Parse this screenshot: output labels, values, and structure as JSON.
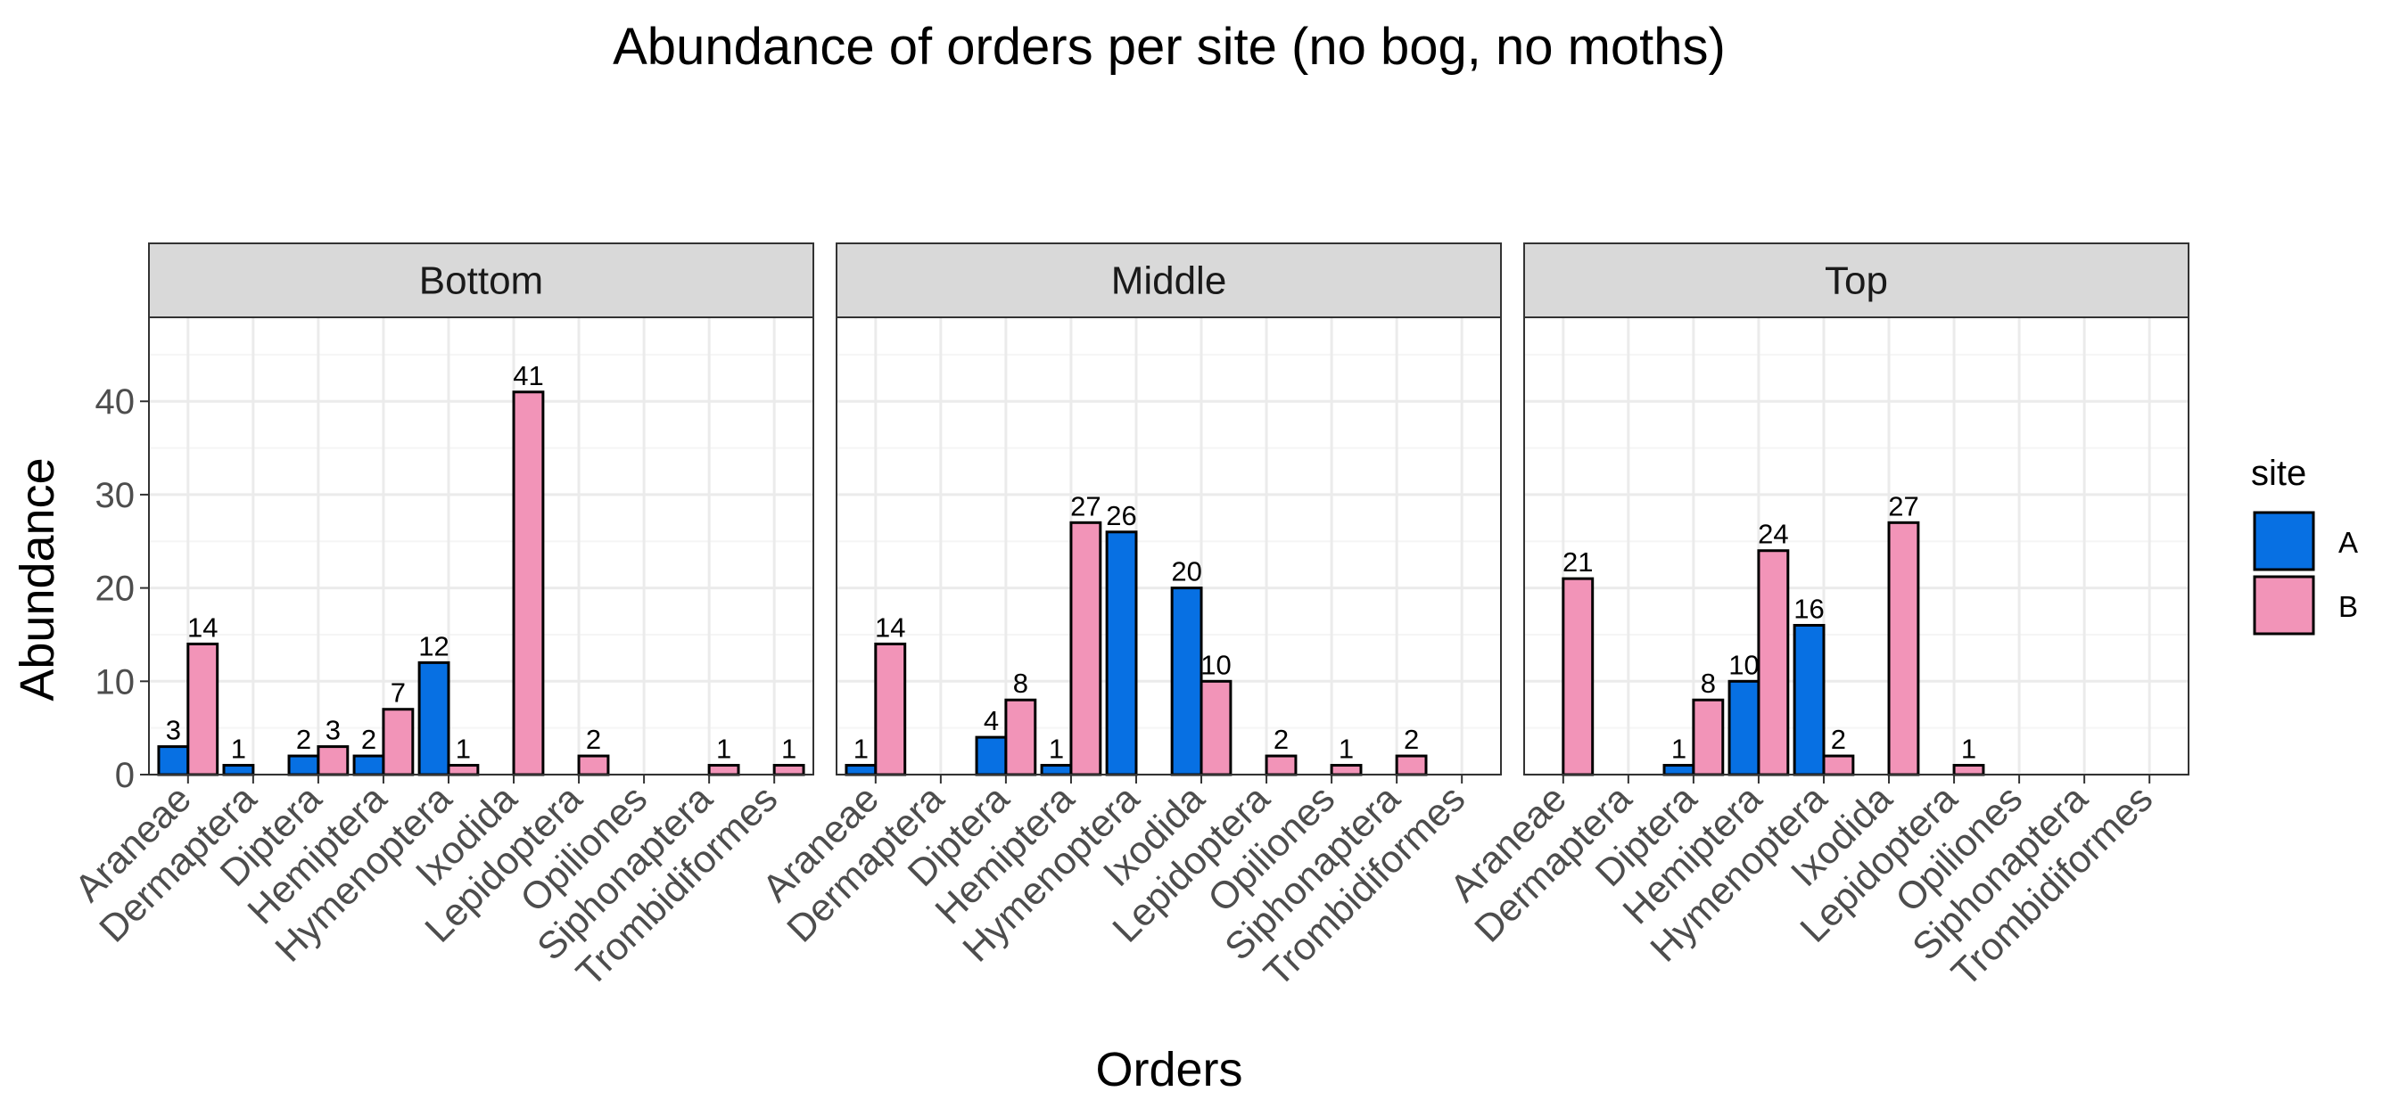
{
  "chart_data": {
    "type": "bar",
    "title": "Abundance of orders per site (no bog, no moths)",
    "xlabel": "Orders",
    "ylabel": "Abundance",
    "ylim": [
      0,
      49
    ],
    "y_ticks": [
      0,
      10,
      20,
      30,
      40
    ],
    "grid": true,
    "legend": {
      "title": "site",
      "position": "right"
    },
    "categories": [
      "Araneae",
      "Dermaptera",
      "Diptera",
      "Hemiptera",
      "Hymenoptera",
      "Ixodida",
      "Lepidoptera",
      "Opiliones",
      "Siphonaptera",
      "Trombidiformes"
    ],
    "series": [
      {
        "name": "A",
        "color": "#0770E3"
      },
      {
        "name": "B",
        "color": "#F294B8"
      }
    ],
    "panels": [
      {
        "name": "Bottom",
        "values": {
          "A": [
            3,
            1,
            2,
            2,
            12,
            null,
            null,
            null,
            null,
            null
          ],
          "B": [
            14,
            null,
            3,
            7,
            1,
            41,
            2,
            null,
            1,
            1
          ]
        }
      },
      {
        "name": "Middle",
        "values": {
          "A": [
            1,
            null,
            4,
            1,
            26,
            20,
            null,
            null,
            null,
            null
          ],
          "B": [
            14,
            null,
            8,
            27,
            null,
            10,
            2,
            1,
            2,
            null
          ]
        }
      },
      {
        "name": "Top",
        "values": {
          "A": [
            null,
            null,
            1,
            10,
            16,
            null,
            null,
            null,
            null,
            null
          ],
          "B": [
            21,
            null,
            8,
            24,
            2,
            27,
            1,
            null,
            null,
            null
          ]
        }
      }
    ]
  },
  "colors": {
    "strip_fill": "#D9D9D9",
    "panel_border": "#333333",
    "grid_major": "#EBEBEB",
    "grid_minor": "#F5F5F5"
  }
}
